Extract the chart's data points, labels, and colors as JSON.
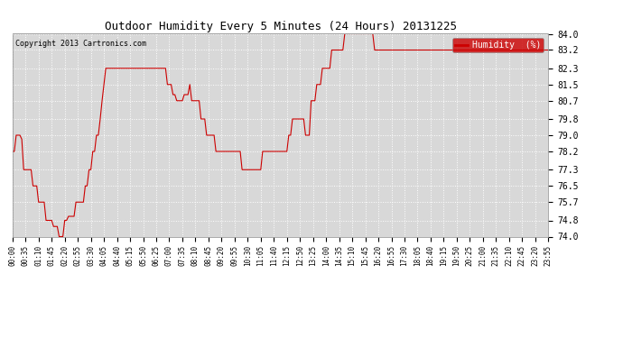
{
  "title": "Outdoor Humidity Every 5 Minutes (24 Hours) 20131225",
  "copyright": "Copyright 2013 Cartronics.com",
  "legend_label": "Humidity  (%)",
  "legend_bg": "#cc0000",
  "legend_text_color": "#ffffff",
  "line_color": "#cc0000",
  "bg_color": "#ffffff",
  "plot_bg_color": "#d8d8d8",
  "grid_color": "#ffffff",
  "ylim": [
    74.0,
    84.0
  ],
  "yticks": [
    74.0,
    74.8,
    75.7,
    76.5,
    77.3,
    78.2,
    79.0,
    79.8,
    80.7,
    81.5,
    82.3,
    83.2,
    84.0
  ],
  "humidity_values": [
    78.2,
    78.2,
    79.0,
    79.0,
    79.0,
    78.8,
    77.3,
    77.3,
    77.3,
    77.3,
    77.3,
    76.5,
    76.5,
    76.5,
    75.7,
    75.7,
    75.7,
    75.7,
    74.8,
    74.8,
    74.8,
    74.8,
    74.5,
    74.5,
    74.5,
    74.0,
    74.0,
    74.0,
    74.8,
    74.8,
    75.0,
    75.0,
    75.0,
    75.0,
    75.7,
    75.7,
    75.7,
    75.7,
    75.7,
    76.5,
    76.5,
    77.3,
    77.3,
    78.2,
    78.2,
    79.0,
    79.0,
    79.8,
    80.7,
    81.5,
    82.3,
    82.3,
    82.3,
    82.3,
    82.3,
    82.3,
    82.3,
    82.3,
    82.3,
    82.3,
    82.3,
    82.3,
    82.3,
    82.3,
    82.3,
    82.3,
    82.3,
    82.3,
    82.3,
    82.3,
    82.3,
    82.3,
    82.3,
    82.3,
    82.3,
    82.3,
    82.3,
    82.3,
    82.3,
    82.3,
    82.3,
    82.3,
    82.3,
    81.5,
    81.5,
    81.5,
    81.0,
    81.0,
    80.7,
    80.7,
    80.7,
    80.7,
    81.0,
    81.0,
    81.0,
    81.5,
    80.7,
    80.7,
    80.7,
    80.7,
    80.7,
    79.8,
    79.8,
    79.8,
    79.0,
    79.0,
    79.0,
    79.0,
    79.0,
    78.2,
    78.2,
    78.2,
    78.2,
    78.2,
    78.2,
    78.2,
    78.2,
    78.2,
    78.2,
    78.2,
    78.2,
    78.2,
    78.2,
    77.3,
    77.3,
    77.3,
    77.3,
    77.3,
    77.3,
    77.3,
    77.3,
    77.3,
    77.3,
    77.3,
    78.2,
    78.2,
    78.2,
    78.2,
    78.2,
    78.2,
    78.2,
    78.2,
    78.2,
    78.2,
    78.2,
    78.2,
    78.2,
    78.2,
    79.0,
    79.0,
    79.8,
    79.8,
    79.8,
    79.8,
    79.8,
    79.8,
    79.8,
    79.0,
    79.0,
    79.0,
    80.7,
    80.7,
    80.7,
    81.5,
    81.5,
    81.5,
    82.3,
    82.3,
    82.3,
    82.3,
    82.3,
    83.2,
    83.2,
    83.2,
    83.2,
    83.2,
    83.2,
    83.2,
    84.0,
    84.0,
    84.0,
    84.0,
    84.0,
    84.0,
    84.0,
    84.0,
    84.0,
    84.0,
    84.0,
    84.0,
    84.0,
    84.0,
    84.0,
    84.0,
    83.2,
    83.2,
    83.2,
    83.2,
    83.2,
    83.2,
    83.2,
    83.2,
    83.2,
    83.2,
    83.2,
    83.2,
    83.2,
    83.2,
    83.2,
    83.2,
    83.2,
    83.2,
    83.2,
    83.2,
    83.2,
    83.2,
    83.2,
    83.2,
    83.2,
    83.2,
    83.2,
    83.2,
    83.2,
    83.2,
    83.2,
    83.2,
    83.2,
    83.2,
    83.2,
    83.2,
    83.2,
    83.2,
    83.2,
    83.2,
    83.2,
    83.2,
    83.2,
    83.2,
    83.2,
    83.2,
    83.2,
    83.2,
    83.2,
    83.2,
    83.2,
    83.2,
    83.2,
    83.2,
    83.2,
    83.2,
    83.2,
    83.2,
    83.2,
    83.2,
    83.2,
    83.2,
    83.2,
    83.2,
    83.2,
    83.2,
    83.2,
    83.2,
    83.2,
    83.2,
    83.2,
    83.2,
    83.2,
    83.2,
    83.2,
    83.2,
    83.2,
    83.2,
    83.2,
    83.2,
    83.2,
    83.2,
    83.2,
    83.2,
    83.2,
    83.2,
    83.2,
    83.2,
    83.2,
    83.2,
    83.2,
    83.2,
    83.2,
    83.2
  ],
  "x_tick_labels": [
    "00:00",
    "00:35",
    "01:10",
    "01:45",
    "02:20",
    "02:55",
    "03:30",
    "04:05",
    "04:40",
    "05:15",
    "05:50",
    "06:25",
    "07:00",
    "07:35",
    "08:10",
    "08:45",
    "09:20",
    "09:55",
    "10:30",
    "11:05",
    "11:40",
    "12:15",
    "12:50",
    "13:25",
    "14:00",
    "14:35",
    "15:10",
    "15:45",
    "16:20",
    "16:55",
    "17:30",
    "18:05",
    "18:40",
    "19:15",
    "19:50",
    "20:25",
    "21:00",
    "21:35",
    "22:10",
    "22:45",
    "23:20",
    "23:55"
  ]
}
